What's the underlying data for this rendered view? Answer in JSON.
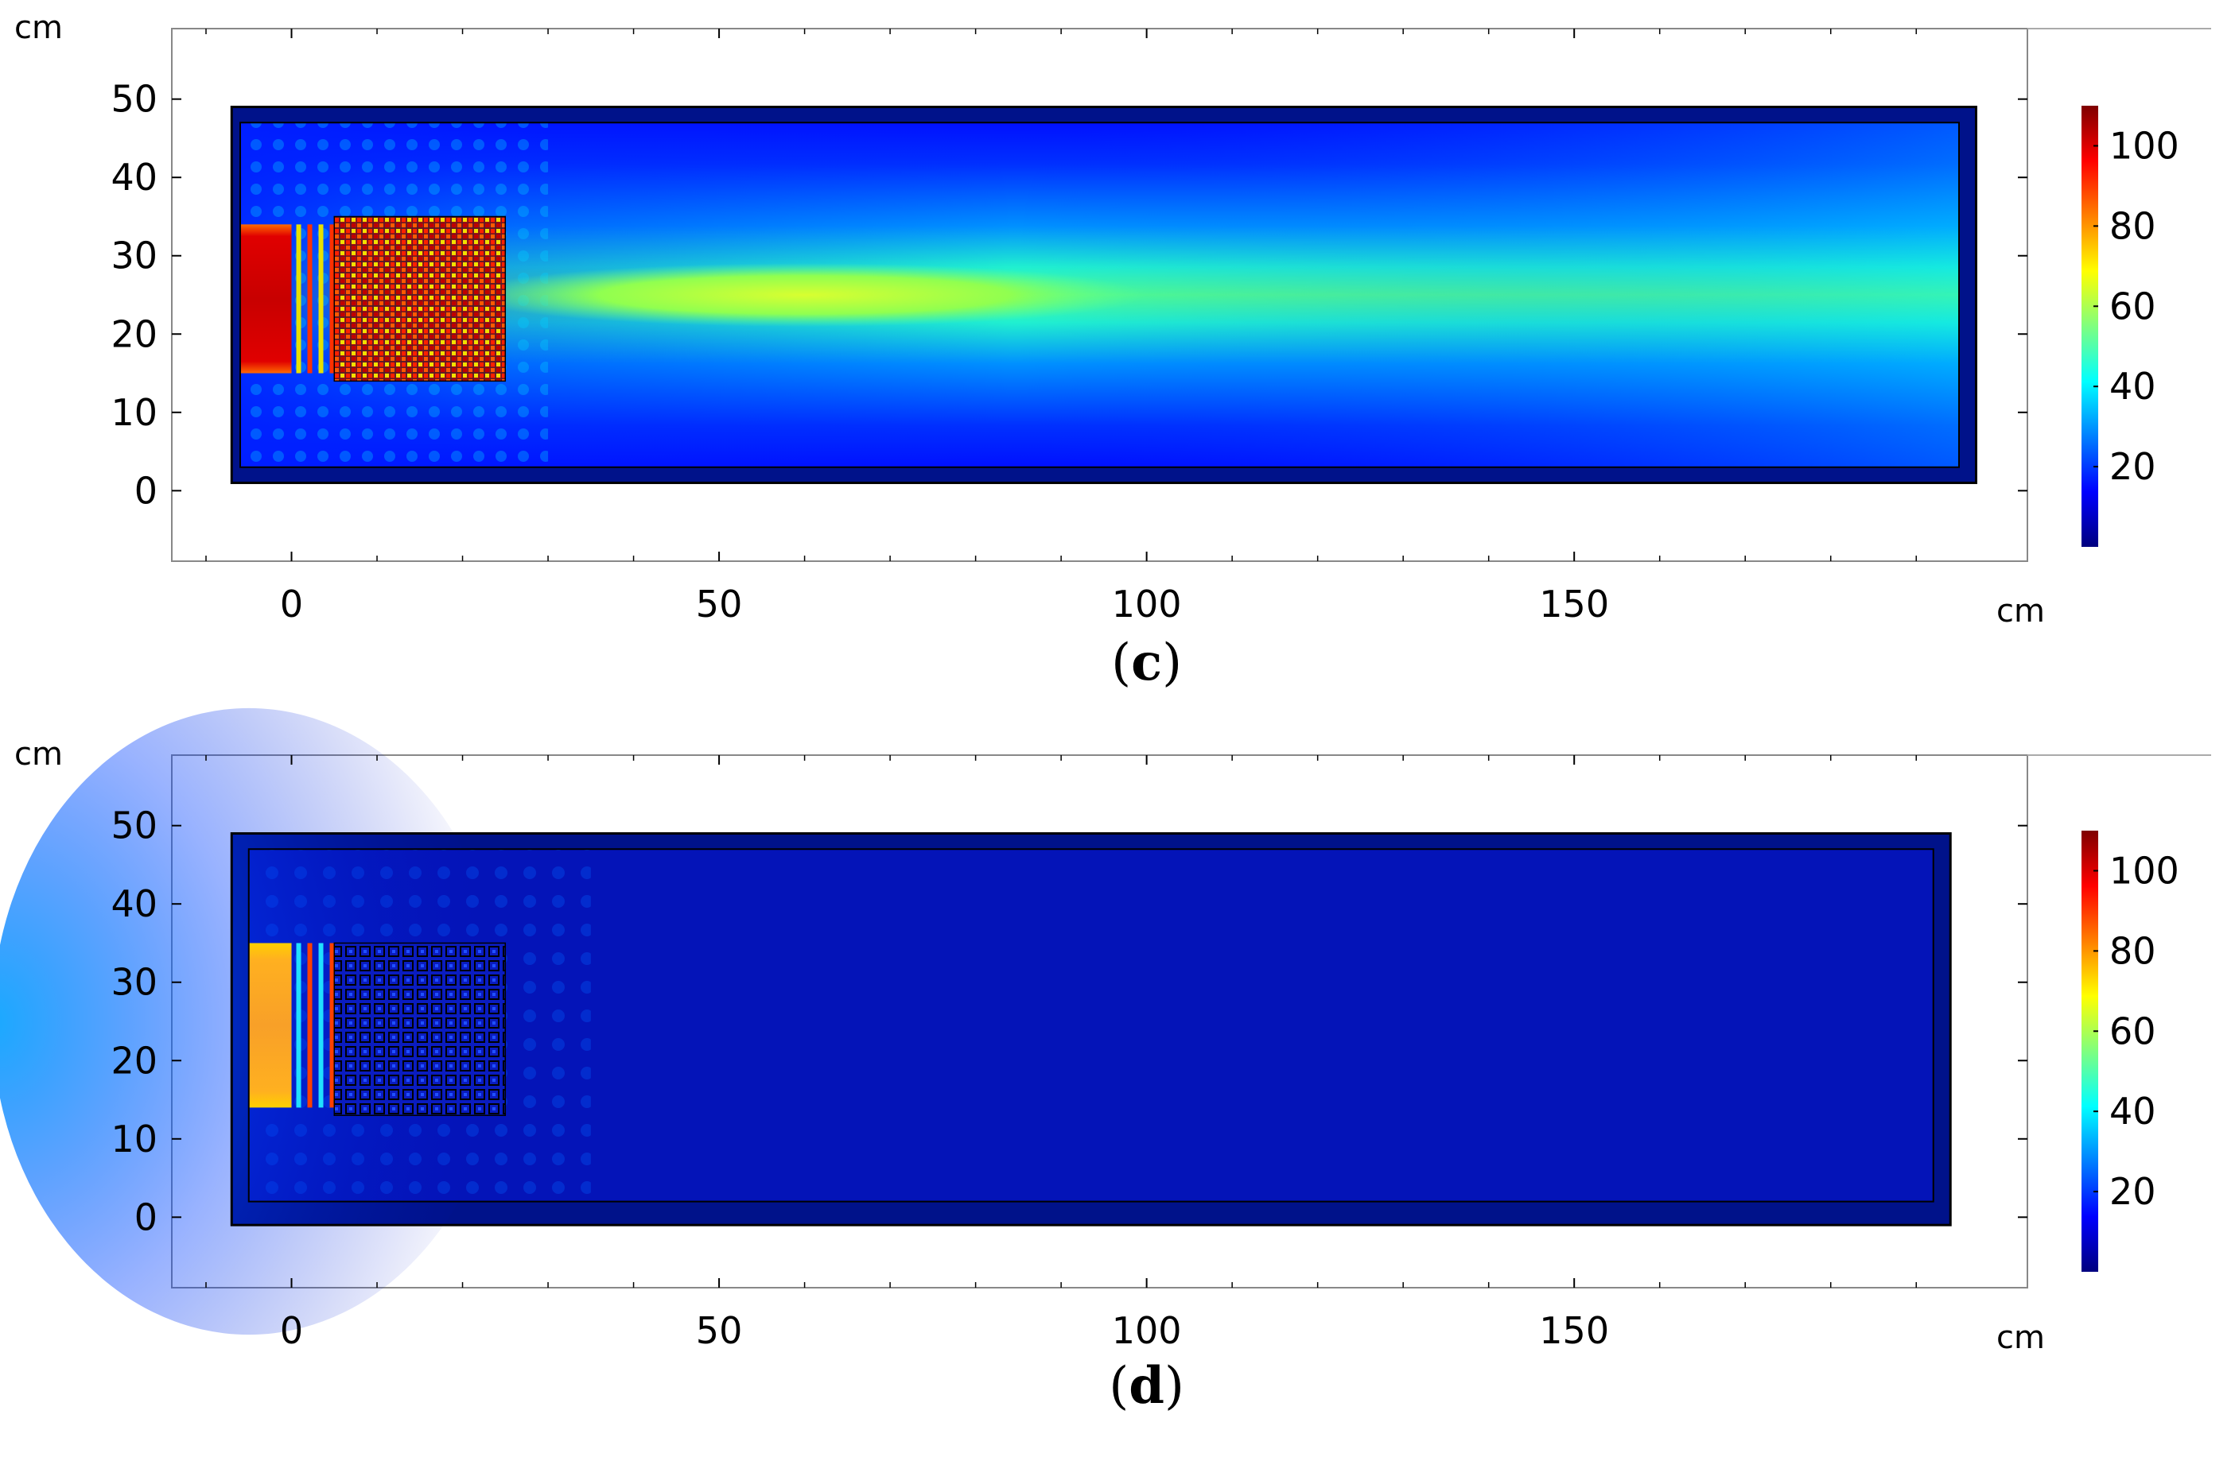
{
  "colors": {
    "jet": [
      "#00007f",
      "#0000ff",
      "#007fff",
      "#00ffff",
      "#7fff7f",
      "#ffff00",
      "#ff7f00",
      "#ff0000",
      "#7f0000"
    ],
    "frame": "#000000",
    "background": "#ffffff"
  },
  "chart_data": [
    {
      "type": "heatmap",
      "panel": "c",
      "caption": "(c)",
      "xunit": "cm",
      "yunit": "cm",
      "x_ticks": [
        "0",
        "50",
        "100",
        "150"
      ],
      "y_ticks": [
        "0",
        "10",
        "20",
        "30",
        "40",
        "50"
      ],
      "colorbar_ticks": [
        "20",
        "40",
        "60",
        "80",
        "100"
      ],
      "colorbar_range": [
        0,
        110
      ],
      "xlim": [
        -14,
        203
      ],
      "ylim": [
        -9,
        59
      ],
      "domain": {
        "x": [
          -7,
          197
        ],
        "y": [
          1,
          49
        ]
      },
      "pml_inner": {
        "x": [
          -6,
          195
        ],
        "y": [
          3,
          47
        ]
      },
      "source_strip": {
        "x": [
          -6,
          0
        ],
        "y": [
          15,
          34
        ],
        "value": 105
      },
      "lattice_region": {
        "x": [
          5,
          25
        ],
        "y": [
          14,
          35
        ]
      },
      "beam": {
        "center_y": 25,
        "peak_value": 65,
        "far_value": 42
      }
    },
    {
      "type": "heatmap",
      "panel": "d",
      "caption": "(d)",
      "xunit": "cm",
      "yunit": "cm",
      "x_ticks": [
        "0",
        "50",
        "100",
        "150"
      ],
      "y_ticks": [
        "0",
        "10",
        "20",
        "30",
        "40",
        "50"
      ],
      "colorbar_ticks": [
        "20",
        "40",
        "60",
        "80",
        "100"
      ],
      "colorbar_range": [
        0,
        110
      ],
      "xlim": [
        -14,
        203
      ],
      "ylim": [
        -9,
        59
      ],
      "domain": {
        "x": [
          -7,
          194
        ],
        "y": [
          -1,
          49
        ]
      },
      "pml_inner": {
        "x": [
          -5,
          192
        ],
        "y": [
          2,
          47
        ]
      },
      "source_strip": {
        "x": [
          -5,
          0
        ],
        "y": [
          14,
          35
        ],
        "value": 70
      },
      "lattice_region": {
        "x": [
          5,
          25
        ],
        "y": [
          13,
          35
        ]
      },
      "beam": {
        "center_y": 25,
        "peak_value": 8,
        "far_value": 3
      }
    }
  ]
}
